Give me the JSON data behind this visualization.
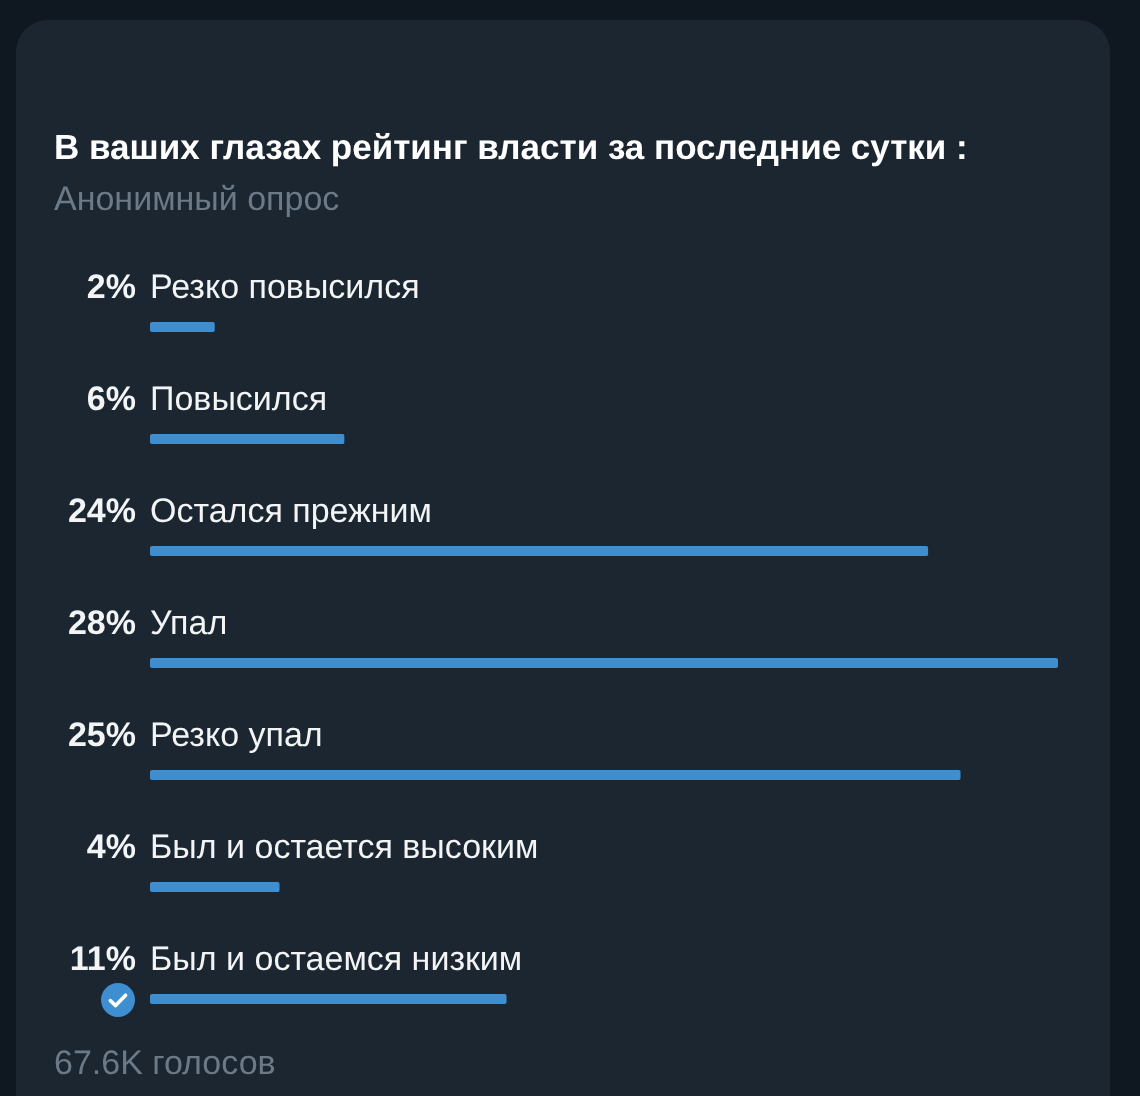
{
  "chart_data": {
    "type": "bar",
    "orientation": "horizontal",
    "title": "В ваших глазах рейтинг власти за последние сутки :",
    "subtitle": "Анонимный опрос",
    "categories": [
      "Резко повысился",
      "Повысился",
      "Остался прежним",
      "Упал",
      "Резко упал",
      "Был и остается высоким",
      "Был и остаемся низким"
    ],
    "values": [
      2,
      6,
      24,
      28,
      25,
      4,
      11
    ],
    "value_labels": [
      "2%",
      "6%",
      "24%",
      "28%",
      "25%",
      "4%",
      "11%"
    ],
    "color": "#3e8fd1",
    "tick_labels": "y",
    "annotations": [
      "67.6K голосов"
    ]
  }
}
